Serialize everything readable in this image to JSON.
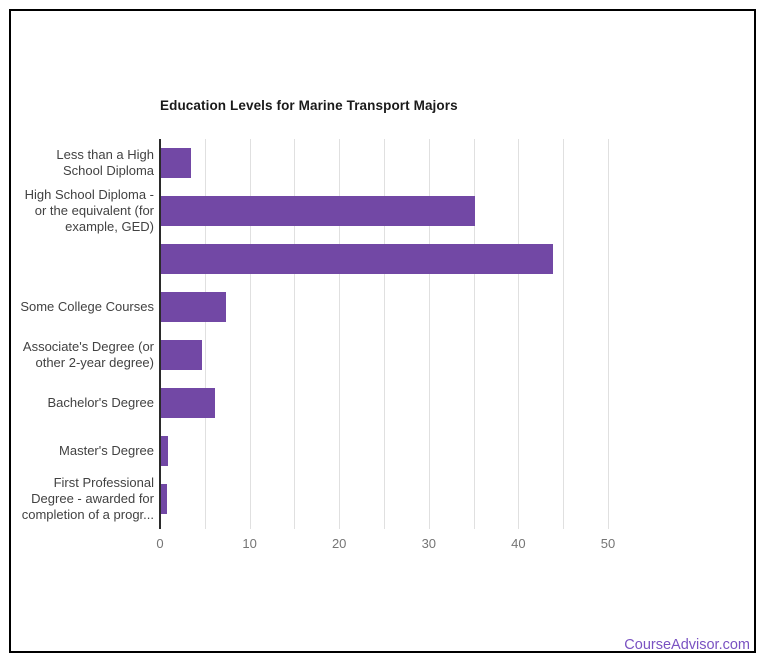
{
  "chart_data": {
    "type": "bar",
    "orientation": "horizontal",
    "title": "Education Levels for Marine Transport Majors",
    "categories": [
      "Less than a High School Diploma",
      "High School Diploma - or the equivalent (for example, GED)",
      "",
      "Some College Courses",
      "Associate's Degree (or other 2-year degree)",
      "Bachelor's Degree",
      "Master's Degree",
      "First Professional Degree - awarded for completion of a progr..."
    ],
    "category_label_lines": [
      [
        "Less than a High",
        "School Diploma"
      ],
      [
        "High School Diploma -",
        "or the equivalent (for",
        "example, GED)"
      ],
      [],
      [
        "Some College Courses"
      ],
      [
        "Associate's Degree (or",
        "other 2-year degree)"
      ],
      [
        "Bachelor's Degree"
      ],
      [
        "Master's Degree"
      ],
      [
        "First Professional",
        "Degree - awarded for",
        "completion of a progr..."
      ]
    ],
    "values": [
      3.4,
      35,
      43.8,
      7.2,
      4.6,
      6,
      0.8,
      0.7
    ],
    "xlabel": "",
    "ylabel": "",
    "xlim": [
      0,
      55
    ],
    "x_ticks": [
      0,
      10,
      20,
      30,
      40,
      50
    ],
    "gridline_step": 5,
    "grid": true,
    "legend": "none",
    "bar_color": "#7248a5"
  },
  "footer": {
    "brand": "CourseAdvisor.com"
  },
  "colors": {
    "bar": "#7248a5",
    "grid": "#e0e0e0",
    "axis": "#2b2b2b",
    "title": "#1a1a1a",
    "label": "#424242",
    "tick": "#757575",
    "brand": "#7a52c2",
    "border": "#000000"
  }
}
